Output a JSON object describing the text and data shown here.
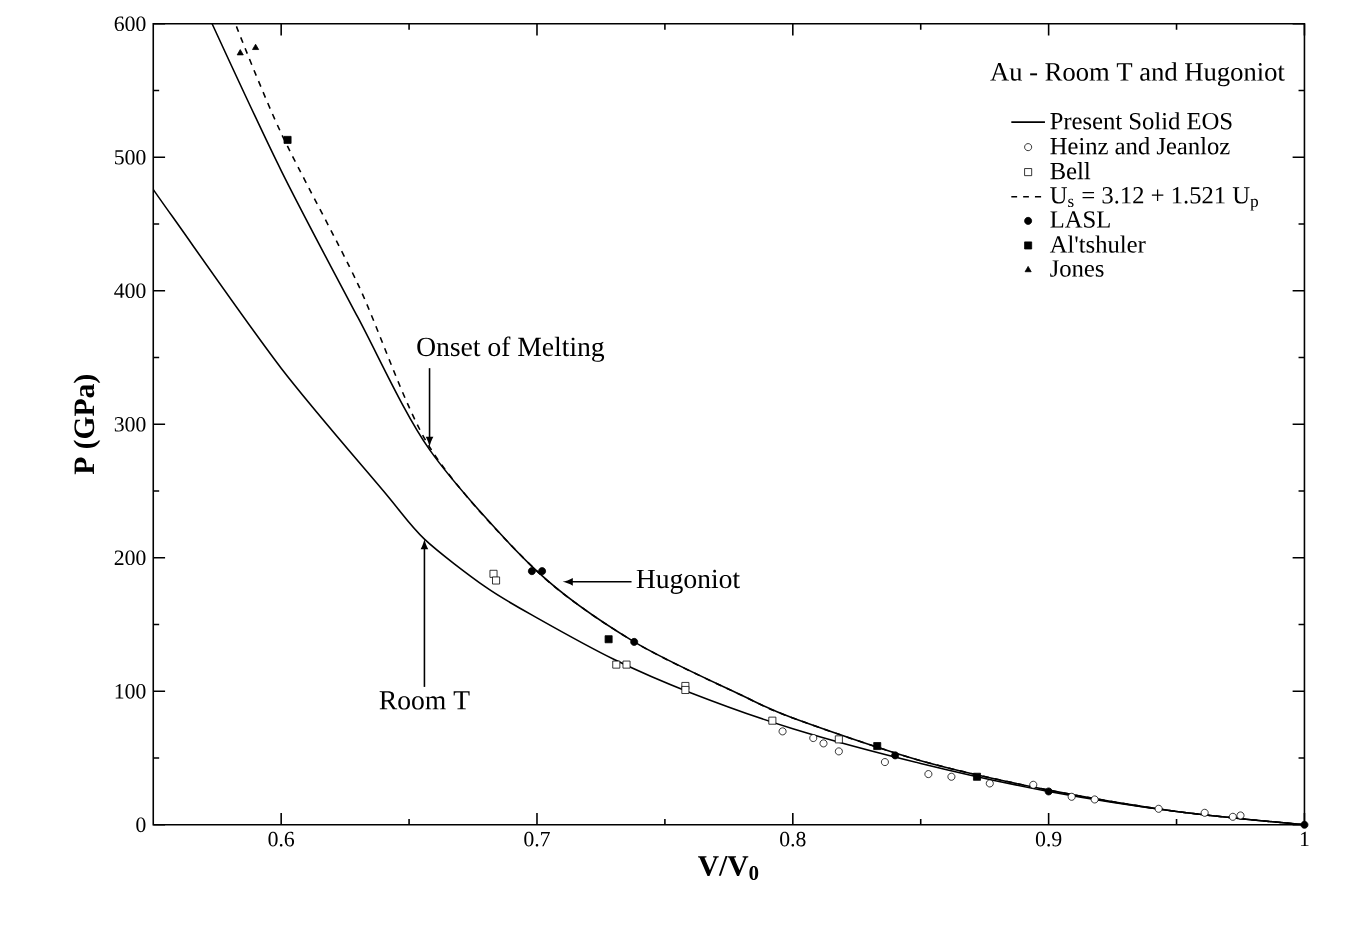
{
  "chart_data": {
    "type": "line",
    "legend_title": "Au - Room T and Hugoniot",
    "xlabel": "V/V$_{0}$",
    "ylabel": "P  (GPa)",
    "xlim": [
      0.55,
      1
    ],
    "ylim": [
      0,
      600
    ],
    "xticks": [
      0.6,
      0.7,
      0.8,
      0.9,
      1
    ],
    "yticks": [
      0,
      100,
      200,
      300,
      400,
      500,
      600
    ],
    "legend": "top right",
    "grid": false,
    "series": [
      {
        "name": "Present Solid EOS",
        "line_style": "solid",
        "marker": "none",
        "color": "#000000",
        "x": [
          0.573,
          0.6,
          0.63,
          0.658,
          0.7,
          0.738,
          0.78,
          0.8,
          0.85,
          0.9,
          0.95,
          1
        ],
        "values": [
          600,
          490,
          380,
          281,
          190,
          137,
          97,
          80,
          48,
          26,
          10,
          0
        ]
      },
      {
        "name": "Heinz and Jeanloz",
        "type": "scatter",
        "marker": "circle",
        "color": "#ffffff",
        "x": [
          0.796,
          0.808,
          0.812,
          0.818,
          0.836,
          0.853,
          0.862,
          0.877,
          0.894,
          0.909,
          0.918,
          0.943,
          0.961,
          0.972,
          0.975
        ],
        "values": [
          70,
          65,
          61,
          55,
          47,
          38,
          36,
          31,
          30,
          21,
          19,
          12,
          9,
          6,
          7
        ]
      },
      {
        "name": "Bell",
        "type": "scatter",
        "marker": "square",
        "color": "#ffffff",
        "x": [
          0.683,
          0.684,
          0.731,
          0.735,
          0.758,
          0.758,
          0.792,
          0.818
        ],
        "values": [
          188,
          183,
          120,
          120,
          104,
          101,
          78,
          64
        ]
      },
      {
        "name": "U$_{s}$ = 3.12 + 1.521 U$_{p}$",
        "line_style": "dashed",
        "marker": "none",
        "color": "#000000",
        "x": [
          0.5825,
          0.6,
          0.63,
          0.658,
          0.7,
          0.738,
          0.78,
          0.8,
          0.85,
          0.9,
          0.95,
          1
        ],
        "values": [
          598,
          518,
          405,
          283,
          190,
          137,
          97,
          80,
          48,
          26,
          10,
          0
        ]
      },
      {
        "name": "LASL",
        "type": "scatter",
        "marker": "circle",
        "color": "#000000",
        "x": [
          0.698,
          0.702,
          0.738,
          0.84,
          0.9,
          1.0
        ],
        "values": [
          190,
          190,
          137,
          52,
          25,
          0
        ]
      },
      {
        "name": "Al'tshuler",
        "type": "scatter",
        "marker": "square",
        "color": "#000000",
        "x": [
          0.6025,
          0.728,
          0.833,
          0.872
        ],
        "values": [
          513,
          139,
          59,
          36
        ]
      },
      {
        "name": "Jones",
        "type": "scatter",
        "marker": "triangle",
        "color": "#000000",
        "x": [
          0.584,
          0.59
        ],
        "values": [
          578,
          582
        ]
      },
      {
        "line_style": "solid",
        "marker": "none",
        "color": "#000000",
        "x": [
          0.55,
          0.5577,
          0.6,
          0.64,
          0.656,
          0.68,
          0.7,
          0.73,
          0.76,
          0.8,
          0.85,
          0.9,
          0.95,
          1
        ],
        "values": [
          476,
          455,
          342,
          250,
          214,
          178,
          155,
          124,
          99,
          72,
          46,
          25,
          10,
          0
        ]
      }
    ],
    "annotations": [
      {
        "text": "Onset of Melting",
        "x": 0.658,
        "y": 283
      },
      {
        "text": "Hugoniot",
        "x": 0.71,
        "y": 182
      },
      {
        "text": "Room T",
        "x": 0.656,
        "y": 214
      }
    ]
  }
}
